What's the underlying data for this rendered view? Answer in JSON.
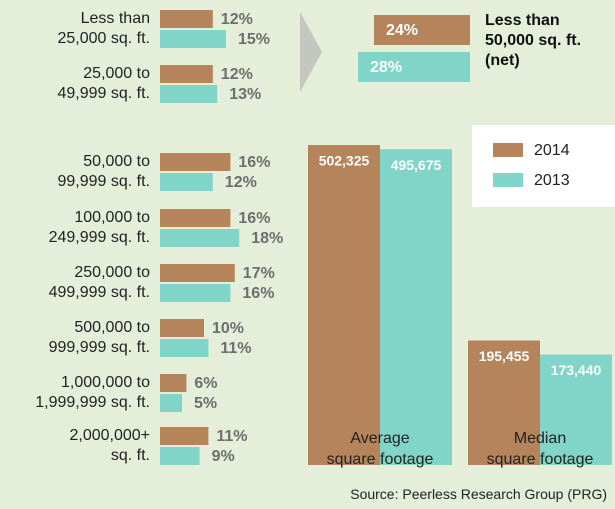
{
  "chart_data": [
    {
      "type": "hbar",
      "categories": [
        "Less than\n25,000 sq. ft.",
        "25,000 to\n49,999 sq. ft.",
        "50,000 to\n99,999 sq. ft.",
        "100,000 to\n249,999 sq. ft.",
        "250,000 to\n499,999 sq. ft.",
        "500,000 to\n999,999 sq. ft.",
        "1,000,000 to\n1,999,999 sq. ft.",
        "2,000,000+\nsq. ft."
      ],
      "series": [
        {
          "name": "2014",
          "color": "#b5845b",
          "values": [
            12,
            12,
            16,
            16,
            17,
            10,
            6,
            11
          ],
          "value_labels": [
            "12%",
            "12%",
            "16%",
            "16%",
            "17%",
            "10%",
            "6%",
            "11%"
          ]
        },
        {
          "name": "2013",
          "color": "#80d4c8",
          "values": [
            15,
            13,
            12,
            18,
            16,
            11,
            5,
            9
          ],
          "value_labels": [
            "15%",
            "13%",
            "12%",
            "18%",
            "16%",
            "11%",
            "5%",
            "9%"
          ]
        }
      ]
    },
    {
      "type": "summary",
      "title": "Less than\n50,000 sq. ft.\n(net)",
      "series": [
        {
          "name": "2014",
          "color": "#b5845b",
          "values": [
            24
          ],
          "value_labels": [
            "24%"
          ]
        },
        {
          "name": "2013",
          "color": "#80d4c8",
          "values": [
            28
          ],
          "value_labels": [
            "28%"
          ]
        }
      ]
    },
    {
      "type": "bar",
      "categories": [
        "Average\nsquare footage",
        "Median\nsquare footage"
      ],
      "series": [
        {
          "name": "2014",
          "color": "#b5845b",
          "values": [
            502325,
            195455
          ],
          "value_labels": [
            "502,325",
            "195,455"
          ]
        },
        {
          "name": "2013",
          "color": "#80d4c8",
          "values": [
            495675,
            173440
          ],
          "value_labels": [
            "495,675",
            "173,440"
          ]
        }
      ],
      "legend": "upper right"
    }
  ],
  "source": "Source: Peerless Research Group (PRG)"
}
